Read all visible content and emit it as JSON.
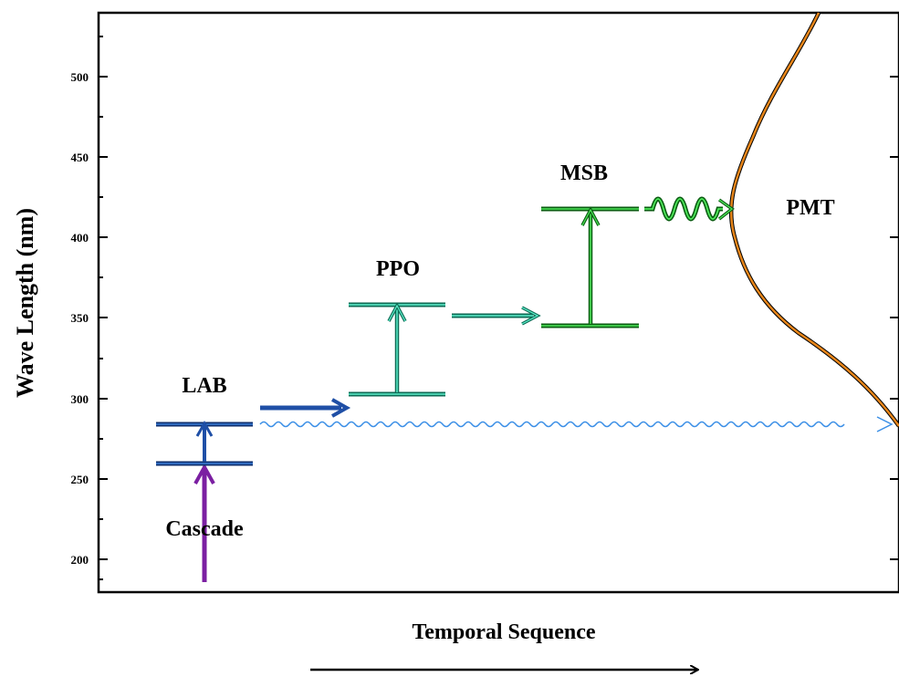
{
  "diagram": {
    "yaxis": {
      "label": "Wave Length (nm)",
      "ticks": [
        "200",
        "250",
        "300",
        "350",
        "400",
        "450",
        "500"
      ]
    },
    "xaxis": {
      "label": "Temporal Sequence"
    },
    "labels": {
      "cascade": "Cascade",
      "lab": "LAB",
      "ppo": "PPO",
      "msb": "MSB",
      "pmt": "PMT"
    },
    "colors": {
      "cascade": "#7b1fa2",
      "lab": "#1f4fa6",
      "ppo": "#2fd6a8",
      "msb": "#2ecc40",
      "pmt_curve": "#e8861a",
      "direct_emission": "#3a8ee6"
    }
  }
}
